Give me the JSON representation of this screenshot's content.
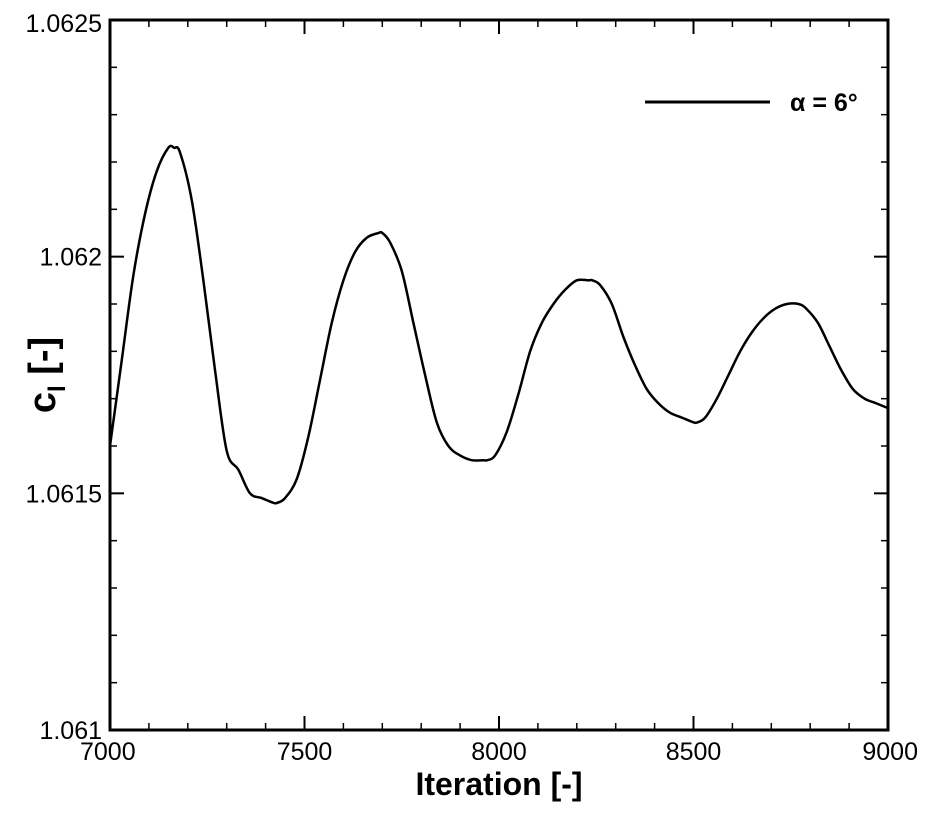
{
  "chart_data": {
    "type": "line",
    "title": "",
    "xlabel": "Iteration [-]",
    "ylabel_main": "c",
    "ylabel_sub": "l",
    "ylabel_suffix": " [-]",
    "xlim": [
      7000,
      9000
    ],
    "ylim": [
      1.061,
      1.0625
    ],
    "x_ticks": [
      7000,
      7500,
      8000,
      8500,
      9000
    ],
    "x_tick_labels": [
      "7000",
      "7500",
      "8000",
      "8500",
      "9000"
    ],
    "y_ticks": [
      1.061,
      1.0615,
      1.062,
      1.0625
    ],
    "y_tick_labels": [
      "1.061",
      "1.0615",
      "1.062",
      "1.0625"
    ],
    "x_minor_step": 100,
    "y_minor_step": 0.0001,
    "grid": false,
    "legend_position": "top-right",
    "series": [
      {
        "name": "α = 6°",
        "color": "#000000",
        "x": [
          7000,
          7030,
          7060,
          7090,
          7120,
          7150,
          7165,
          7180,
          7210,
          7240,
          7270,
          7300,
          7330,
          7360,
          7390,
          7420,
          7430,
          7450,
          7480,
          7510,
          7540,
          7570,
          7600,
          7630,
          7660,
          7690,
          7700,
          7720,
          7750,
          7780,
          7810,
          7840,
          7870,
          7900,
          7930,
          7960,
          7970,
          7990,
          8020,
          8050,
          8080,
          8110,
          8140,
          8170,
          8200,
          8230,
          8240,
          8260,
          8290,
          8320,
          8350,
          8380,
          8410,
          8440,
          8470,
          8500,
          8510,
          8530,
          8560,
          8590,
          8620,
          8650,
          8680,
          8710,
          8740,
          8770,
          8790,
          8820,
          8850,
          8880,
          8910,
          8940,
          8970,
          9000
        ],
        "values": [
          1.0616,
          1.06178,
          1.06196,
          1.06209,
          1.06218,
          1.06223,
          1.06223,
          1.06222,
          1.06212,
          1.06195,
          1.06176,
          1.06159,
          1.06155,
          1.0615,
          1.06149,
          1.06148,
          1.06148,
          1.06149,
          1.06153,
          1.06162,
          1.06174,
          1.06186,
          1.06195,
          1.06201,
          1.06204,
          1.06205,
          1.06205,
          1.06203,
          1.06197,
          1.06186,
          1.06175,
          1.06165,
          1.0616,
          1.06158,
          1.06157,
          1.06157,
          1.06157,
          1.06158,
          1.06163,
          1.06171,
          1.0618,
          1.06186,
          1.0619,
          1.06193,
          1.06195,
          1.06195,
          1.06195,
          1.06194,
          1.0619,
          1.06183,
          1.06177,
          1.06172,
          1.06169,
          1.06167,
          1.06166,
          1.06165,
          1.06165,
          1.06166,
          1.0617,
          1.06175,
          1.0618,
          1.06184,
          1.06187,
          1.06189,
          1.0619,
          1.0619,
          1.06189,
          1.06186,
          1.06181,
          1.06176,
          1.06172,
          1.0617,
          1.06169,
          1.06168
        ]
      }
    ]
  }
}
